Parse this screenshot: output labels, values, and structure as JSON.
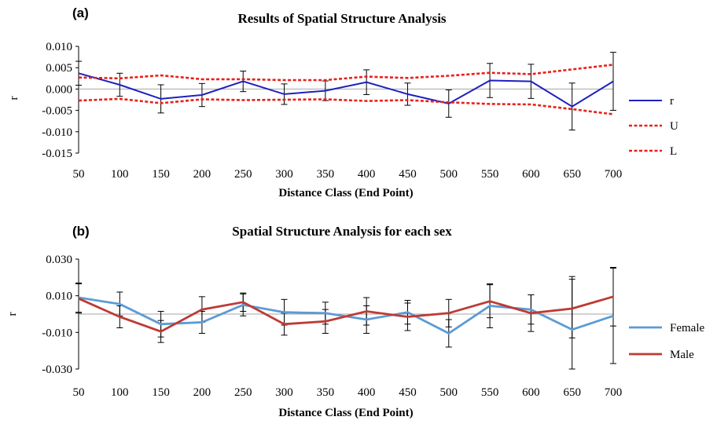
{
  "chart_data": [
    {
      "panel_label": "(a)",
      "type": "line",
      "title": "Results of Spatial Structure Analysis",
      "xlabel": "Distance Class (End Point)",
      "ylabel": "r",
      "categories": [
        "50",
        "100",
        "150",
        "200",
        "250",
        "300",
        "350",
        "400",
        "450",
        "500",
        "550",
        "600",
        "650",
        "700"
      ],
      "ylim": [
        -0.015,
        0.01
      ],
      "yticks": [
        "0.010",
        "0.005",
        "0.000",
        "-0.005",
        "-0.010",
        "-0.015"
      ],
      "ytick_values": [
        0.01,
        0.005,
        0.0,
        -0.005,
        -0.01,
        -0.015
      ],
      "series": [
        {
          "name": "r",
          "color": "#1f1fbf",
          "dash": "solid",
          "values": [
            0.0037,
            0.001,
            -0.0023,
            -0.0014,
            0.0018,
            -0.0012,
            -0.0004,
            0.0016,
            -0.0012,
            -0.0034,
            0.002,
            0.0018,
            -0.0041,
            0.0018
          ],
          "errors": [
            0.0028,
            0.0027,
            0.0033,
            0.0027,
            0.0024,
            0.0024,
            0.0023,
            0.0029,
            0.0026,
            0.0032,
            0.004,
            0.004,
            0.0055,
            0.0068
          ]
        },
        {
          "name": "U",
          "color": "#e8201a",
          "dash": "dashed",
          "values": [
            0.0027,
            0.0025,
            0.0032,
            0.0023,
            0.0023,
            0.0021,
            0.0021,
            0.0029,
            0.0026,
            0.0031,
            0.0038,
            0.0035,
            0.0046,
            0.0057
          ]
        },
        {
          "name": "L",
          "color": "#e8201a",
          "dash": "dashed",
          "values": [
            -0.0027,
            -0.0023,
            -0.0033,
            -0.0024,
            -0.0026,
            -0.0025,
            -0.0024,
            -0.0028,
            -0.0026,
            -0.0031,
            -0.0035,
            -0.0036,
            -0.0047,
            -0.0059
          ]
        }
      ],
      "legend": {
        "position": "right",
        "entries": [
          "r",
          "U",
          "L"
        ]
      },
      "grid": false
    },
    {
      "panel_label": "(b)",
      "type": "line",
      "title": "Spatial Structure Analysis for each sex",
      "xlabel": "Distance Class (End Point)",
      "ylabel": "r",
      "categories": [
        "50",
        "100",
        "150",
        "200",
        "250",
        "300",
        "350",
        "400",
        "450",
        "500",
        "550",
        "600",
        "650",
        "700"
      ],
      "ylim": [
        -0.03,
        0.03
      ],
      "yticks": [
        "0.030",
        "0.010",
        "-0.010",
        "-0.030"
      ],
      "ytick_values": [
        0.03,
        0.01,
        -0.01,
        -0.03
      ],
      "series": [
        {
          "name": "Female",
          "color": "#5b9bd5",
          "dash": "solid",
          "values": [
            0.009,
            0.0055,
            -0.0055,
            -0.0045,
            0.005,
            0.001,
            0.0005,
            -0.003,
            0.001,
            -0.0105,
            0.0045,
            0.0025,
            -0.0085,
            -0.001
          ],
          "errors": [
            0.008,
            0.0065,
            0.007,
            0.006,
            0.006,
            0.007,
            0.006,
            0.0075,
            0.0065,
            0.0075,
            0.012,
            0.008,
            0.029,
            0.026
          ]
        },
        {
          "name": "Male",
          "color": "#be3a34",
          "dash": "solid",
          "values": [
            0.0085,
            -0.0015,
            -0.0095,
            0.0025,
            0.0065,
            -0.0055,
            -0.004,
            0.0015,
            -0.0015,
            0.0005,
            0.007,
            0.0005,
            0.003,
            0.0095
          ],
          "errors": [
            0.008,
            0.006,
            0.006,
            0.007,
            0.005,
            0.006,
            0.0065,
            0.0075,
            0.0075,
            0.0075,
            0.009,
            0.01,
            0.016,
            0.016
          ]
        }
      ],
      "legend": {
        "position": "right",
        "entries": [
          "Female",
          "Male"
        ]
      },
      "grid": false
    }
  ]
}
